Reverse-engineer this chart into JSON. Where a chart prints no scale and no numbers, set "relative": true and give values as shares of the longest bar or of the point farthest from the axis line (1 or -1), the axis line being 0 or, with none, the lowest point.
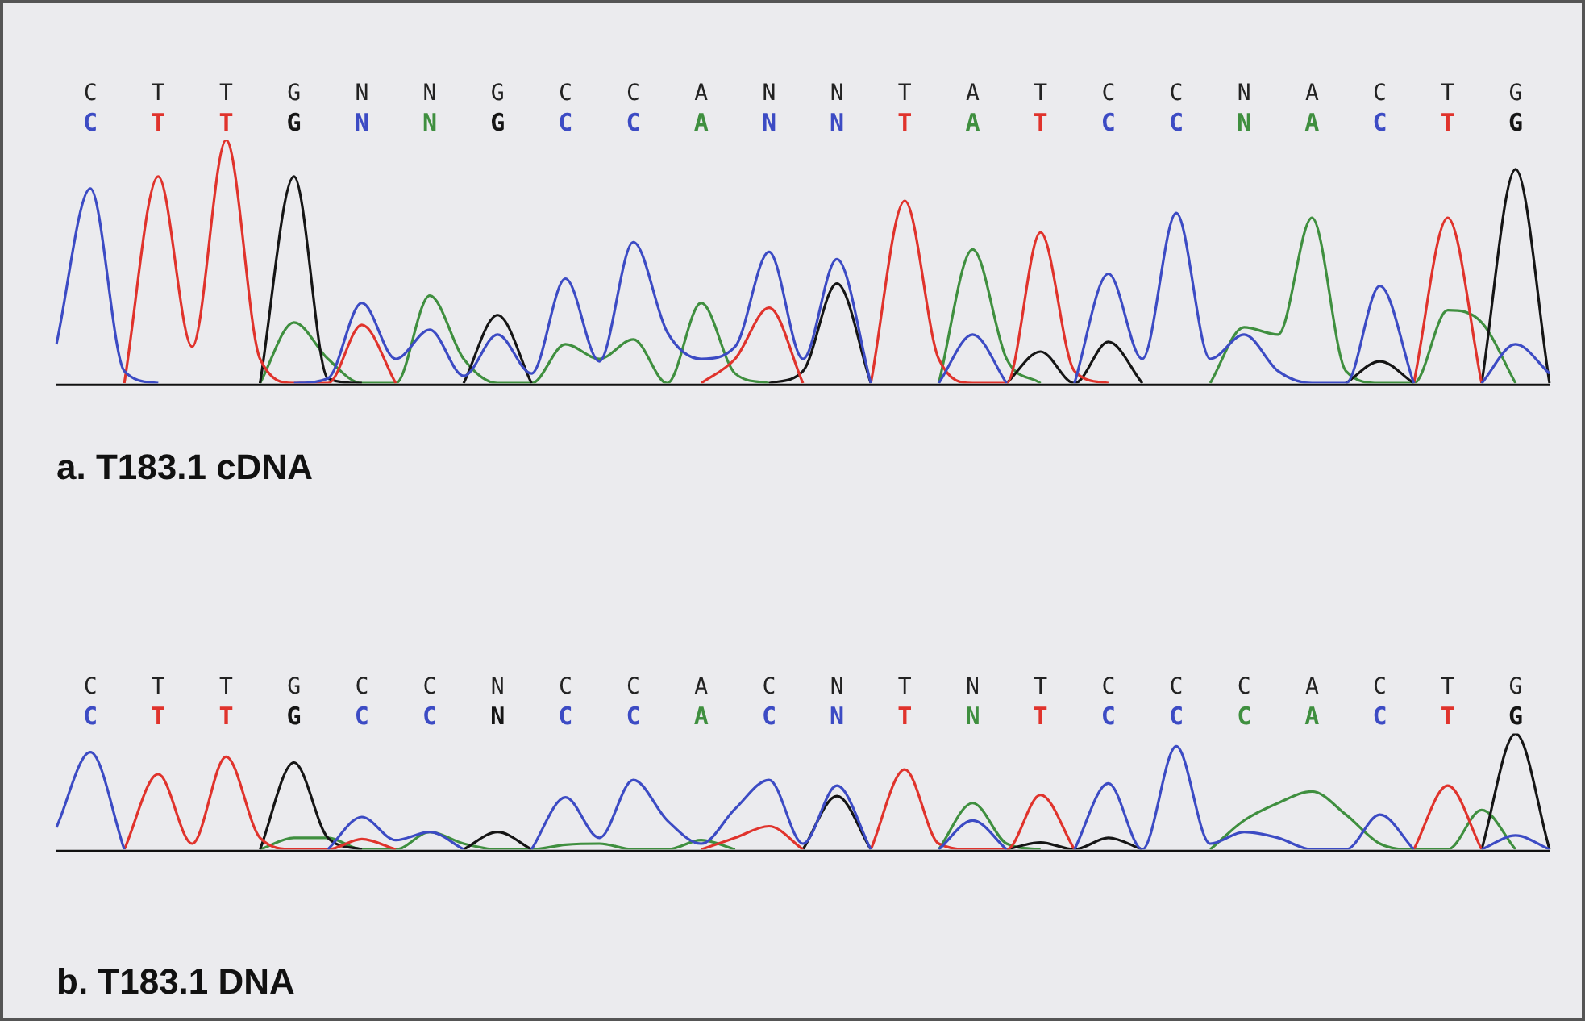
{
  "chart_data": [
    {
      "type": "line",
      "title": "a. T183.1 cDNA",
      "relative": true,
      "categories": [
        null,
        "C",
        null,
        "T",
        null,
        "T",
        null,
        "G",
        null,
        "N",
        null,
        "N",
        null,
        "G",
        null,
        "C",
        null,
        "C",
        null,
        "A",
        null,
        "N",
        null,
        "N",
        null,
        "T",
        null,
        "A",
        null,
        "T",
        null,
        "C",
        null,
        "C",
        null,
        "N",
        null,
        "A",
        null,
        "C",
        null,
        "T",
        null,
        "G",
        null
      ],
      "series": [
        {
          "color": "#3c4bc4",
          "values": [
            0.16,
            0.8,
            0.05,
            0,
            null,
            null,
            null,
            0,
            0.02,
            0.33,
            0.1,
            0.22,
            0.03,
            0.2,
            0.04,
            0.43,
            0.09,
            0.58,
            0.21,
            0.1,
            0.15,
            0.54,
            0.1,
            0.51,
            0,
            null,
            0,
            0.2,
            0,
            null,
            0,
            0.45,
            0.1,
            0.7,
            0.1,
            0.2,
            0.05,
            0,
            0,
            0.4,
            0,
            null,
            0,
            0.16,
            0.04
          ]
        },
        {
          "color": "#e0332c",
          "values": [
            null,
            null,
            0,
            0.85,
            0.15,
            1,
            0.1,
            0,
            0,
            0.24,
            0,
            null,
            null,
            null,
            null,
            null,
            null,
            null,
            null,
            0,
            0.1,
            0.31,
            0,
            null,
            0,
            0.75,
            0.1,
            0,
            0,
            0.62,
            0.05,
            0,
            null,
            null,
            null,
            null,
            null,
            null,
            null,
            null,
            0,
            0.68,
            0,
            null,
            null
          ]
        },
        {
          "color": "#151515",
          "values": [
            null,
            null,
            null,
            null,
            null,
            null,
            0,
            0.85,
            0.02,
            0,
            null,
            null,
            0,
            0.28,
            0,
            null,
            null,
            null,
            null,
            null,
            null,
            0,
            0.05,
            0.41,
            0,
            null,
            null,
            null,
            0,
            0.13,
            0,
            0.17,
            0,
            null,
            null,
            null,
            null,
            null,
            0,
            0.09,
            0,
            null,
            0,
            0.88,
            0
          ]
        },
        {
          "color": "#3f8f3f",
          "values": [
            null,
            null,
            null,
            null,
            null,
            null,
            0,
            0.25,
            0.1,
            0,
            0,
            0.36,
            0.1,
            0,
            0,
            0.16,
            0.1,
            0.18,
            0,
            0.33,
            0.04,
            0,
            null,
            null,
            null,
            null,
            0,
            0.55,
            0.1,
            0,
            null,
            null,
            null,
            null,
            0,
            0.23,
            0.2,
            0.68,
            0.05,
            0,
            0,
            0.3,
            0.25,
            0,
            null
          ]
        }
      ]
    },
    {
      "type": "line",
      "title": "b. T183.1 DNA",
      "relative": true,
      "categories": [
        null,
        "C",
        null,
        "T",
        null,
        "T",
        null,
        "G",
        null,
        "C",
        null,
        "C",
        null,
        "N",
        null,
        "C",
        null,
        "C",
        null,
        "A",
        null,
        "C",
        null,
        "N",
        null,
        "T",
        null,
        "N",
        null,
        "T",
        null,
        "C",
        null,
        "C",
        null,
        "C",
        null,
        "A",
        null,
        "C",
        null,
        "T",
        null,
        "G",
        null
      ],
      "series": [
        {
          "color": "#3c4bc4",
          "values": [
            0.19,
            0.84,
            0,
            null,
            null,
            null,
            null,
            null,
            0,
            0.28,
            0.08,
            0.15,
            0,
            null,
            0,
            0.45,
            0.1,
            0.6,
            0.25,
            0.05,
            0.35,
            0.6,
            0.05,
            0.55,
            0,
            null,
            0,
            0.25,
            0,
            null,
            0,
            0.57,
            0,
            0.89,
            0.05,
            0.15,
            0.1,
            0,
            0,
            0.3,
            0,
            null,
            0,
            0.12,
            0
          ]
        },
        {
          "color": "#e0332c",
          "values": [
            null,
            null,
            0,
            0.65,
            0.05,
            0.8,
            0.1,
            0,
            0,
            0.09,
            0,
            null,
            null,
            null,
            null,
            null,
            null,
            null,
            null,
            0,
            0.1,
            0.2,
            0,
            null,
            0,
            0.69,
            0.05,
            0,
            0,
            0.47,
            0,
            null,
            null,
            null,
            null,
            null,
            null,
            null,
            null,
            null,
            0,
            0.55,
            0,
            null,
            null
          ]
        },
        {
          "color": "#151515",
          "values": [
            null,
            null,
            null,
            null,
            null,
            null,
            0,
            0.75,
            0.1,
            0,
            null,
            null,
            0,
            0.15,
            0,
            null,
            null,
            null,
            null,
            null,
            null,
            null,
            0,
            0.46,
            0,
            null,
            null,
            null,
            0,
            0.06,
            0,
            0.1,
            0,
            null,
            null,
            null,
            null,
            null,
            null,
            null,
            null,
            null,
            0,
            1,
            0
          ]
        },
        {
          "color": "#3f8f3f",
          "values": [
            null,
            null,
            null,
            null,
            null,
            null,
            0,
            0.1,
            0.1,
            0,
            0,
            0.15,
            0.05,
            0,
            0,
            0.04,
            0.05,
            0,
            0,
            0.08,
            0,
            null,
            null,
            null,
            null,
            null,
            0,
            0.4,
            0.05,
            0,
            null,
            null,
            null,
            null,
            0,
            0.25,
            0.4,
            0.5,
            0.3,
            0.05,
            0,
            0,
            0.34,
            0,
            null
          ]
        }
      ]
    }
  ]
}
